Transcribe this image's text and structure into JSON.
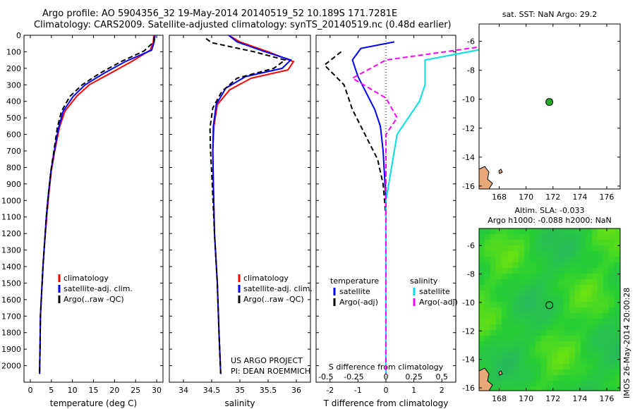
{
  "header": {
    "line1": "Argo profile: AO 5904356_32 19-May-2014 20140519_52 10.189S 171.7281E",
    "line2": "Climatology: CARS2009. Satellite-adjusted climatology: synTS_20140519.nc (0.48d earlier)"
  },
  "credit": "IMOS 26-May-2014 20:00:28",
  "colors": {
    "climatology": "#ff0000",
    "satellite": "#0000ff",
    "argo": "#000000",
    "sal_sat": "#00e0e0",
    "sal_argo": "#ff00ff"
  },
  "chart_data": [
    {
      "type": "line",
      "xlabel": "temperature (deg C)",
      "ylabel": "",
      "xlim": [
        -1.5,
        31.5
      ],
      "ylim": [
        2100,
        0
      ],
      "xticks": [
        0,
        5,
        10,
        15,
        20,
        25,
        30
      ],
      "yticks": [
        0,
        100,
        200,
        300,
        400,
        500,
        600,
        700,
        800,
        900,
        1000,
        1100,
        1200,
        1300,
        1400,
        1500,
        1600,
        1700,
        1800,
        1900,
        2000
      ],
      "legend": [
        "climatology",
        "satellite-adj. clim.",
        "Argo(..raw -QC)"
      ],
      "series": [
        {
          "name": "climatology",
          "x": [
            29.3,
            29.2,
            28.5,
            24,
            19,
            14,
            11,
            8.2,
            6.9,
            5.8,
            5.0,
            4.4,
            3.9,
            3.4,
            3.0,
            2.7,
            2.4,
            2.3,
            2.2
          ],
          "y": [
            0,
            40,
            90,
            160,
            230,
            300,
            370,
            460,
            560,
            700,
            820,
            960,
            1100,
            1250,
            1400,
            1550,
            1700,
            1900,
            2050
          ]
        },
        {
          "name": "satellite-adj. clim.",
          "x": [
            29.6,
            29.4,
            28.8,
            22.5,
            17.5,
            13,
            10.2,
            7.8,
            6.7,
            5.7,
            4.9,
            4.3,
            3.8,
            3.4,
            3.0,
            2.7,
            2.4,
            2.3,
            2.2
          ],
          "y": [
            0,
            40,
            90,
            160,
            230,
            300,
            370,
            460,
            560,
            700,
            820,
            960,
            1100,
            1250,
            1400,
            1550,
            1700,
            1900,
            2050
          ]
        },
        {
          "name": "Argo(..raw -QC)",
          "x": [
            29.4,
            29.3,
            27,
            21.5,
            16.5,
            12.3,
            9.4,
            7.4,
            6.4,
            5.6,
            4.9,
            4.3,
            3.8,
            3.4,
            3.0,
            2.7,
            2.4,
            2.3,
            2.2
          ],
          "y": [
            10,
            40,
            95,
            160,
            230,
            300,
            370,
            460,
            560,
            700,
            820,
            960,
            1100,
            1250,
            1400,
            1550,
            1700,
            1900,
            2050
          ]
        }
      ]
    },
    {
      "type": "line",
      "xlabel": "salinity",
      "ylabel": "",
      "xlim": [
        33.75,
        36.25
      ],
      "ylim": [
        2100,
        0
      ],
      "xticks": [
        34,
        34.5,
        35,
        35.5,
        36
      ],
      "xticklabels": [
        "34",
        "34.5",
        "35",
        "35.5",
        "36"
      ],
      "legend": [
        "climatology",
        "satellite-adj. clim.",
        "Argo(..raw -QC)"
      ],
      "annotation": [
        "US ARGO PROJECT",
        "PI: DEAN ROEMMICH"
      ],
      "series": [
        {
          "name": "climatology",
          "x": [
            34.8,
            35.0,
            35.5,
            35.95,
            35.85,
            35.2,
            34.82,
            34.6,
            34.54,
            34.52,
            34.53,
            34.55,
            34.6,
            34.63,
            34.66
          ],
          "y": [
            0,
            40,
            100,
            160,
            210,
            260,
            330,
            420,
            550,
            700,
            900,
            1200,
            1500,
            1800,
            2050
          ]
        },
        {
          "name": "satellite-adj. clim.",
          "x": [
            34.8,
            34.95,
            35.45,
            35.9,
            35.75,
            35.1,
            34.75,
            34.58,
            34.53,
            34.52,
            34.53,
            34.55,
            34.6,
            34.63,
            34.66
          ],
          "y": [
            0,
            40,
            100,
            150,
            200,
            250,
            320,
            420,
            550,
            700,
            900,
            1200,
            1500,
            1800,
            2050
          ]
        },
        {
          "name": "Argo(..raw -QC)",
          "x": [
            34.4,
            34.5,
            35.25,
            35.8,
            35.6,
            34.95,
            34.68,
            34.52,
            34.47,
            34.48,
            34.51,
            34.55,
            34.6,
            34.63,
            34.66
          ],
          "y": [
            20,
            45,
            100,
            150,
            200,
            260,
            340,
            440,
            560,
            700,
            900,
            1200,
            1500,
            1800,
            2050
          ]
        }
      ]
    },
    {
      "type": "line",
      "xlabel": "T difference from climatology",
      "xlabel2": "S difference from climatology",
      "xlim": [
        -2.5,
        2.5
      ],
      "ylim": [
        2100,
        0
      ],
      "xticks": [
        -2,
        -1,
        0,
        1,
        2
      ],
      "xticklabels": [
        "-2",
        "-1",
        "0",
        "1",
        "2"
      ],
      "xticks2": [
        -0.5,
        -0.25,
        0,
        0.25,
        0.5
      ],
      "xticklabels2": [
        "-0.5",
        "-0.25",
        "0",
        "0.25",
        "0.5"
      ],
      "legend_temperature_title": "temperature",
      "legend_salinity_title": "salinity",
      "legend": [
        "satellite",
        "Argo(-adj)",
        "satellite",
        "Argo(-adj)"
      ],
      "series": [
        {
          "name": "satellite",
          "x": [
            0.3,
            -0.9,
            -1.2,
            -1.0,
            -0.7,
            -0.4,
            -0.2,
            -0.1,
            0,
            0
          ],
          "y": [
            40,
            80,
            150,
            250,
            350,
            450,
            550,
            700,
            1000,
            2050
          ]
        },
        {
          "name": "Argo(-adj)",
          "x": [
            -1.6,
            -2.2,
            -1.5,
            -1.2,
            -0.9,
            -0.6,
            -0.3,
            -0.1,
            0,
            0
          ],
          "y": [
            100,
            180,
            300,
            450,
            550,
            650,
            750,
            900,
            1100,
            2050
          ]
        },
        {
          "name": "satellite",
          "x": [
            1.05,
            0.35,
            0.35,
            0.3,
            0.2,
            0.1,
            0.05,
            0,
            0
          ],
          "y": [
            60,
            150,
            300,
            400,
            500,
            600,
            800,
            1000,
            2050
          ]
        },
        {
          "name": "Argo(-adj)",
          "x": [
            0.95,
            0.0,
            -0.3,
            0.0,
            0.1,
            0.0,
            0,
            0
          ],
          "y": [
            60,
            150,
            260,
            380,
            500,
            600,
            800,
            2050
          ]
        }
      ]
    },
    {
      "type": "scatter",
      "title": "sat. SST: NaN Argo: 29.2",
      "xlim": [
        166.5,
        177
      ],
      "ylim": [
        -16.2,
        -4.8
      ],
      "xticks": [
        168,
        170,
        172,
        174,
        176
      ],
      "yticks": [
        -6,
        -8,
        -10,
        -12,
        -14,
        -16
      ],
      "points": [
        {
          "x": 171.73,
          "y": -10.19
        }
      ]
    },
    {
      "type": "heatmap",
      "title_line1": "Altim. SLA: -0.033",
      "title_line2": "Argo h1000: -0.088 h2000: NaN",
      "xlim": [
        166.5,
        177
      ],
      "ylim": [
        -16.2,
        -4.8
      ],
      "xticks": [
        168,
        170,
        172,
        174,
        176
      ],
      "yticks": [
        -6,
        -8,
        -10,
        -12,
        -14,
        -16
      ],
      "points": [
        {
          "x": 171.73,
          "y": -10.19
        }
      ]
    }
  ]
}
